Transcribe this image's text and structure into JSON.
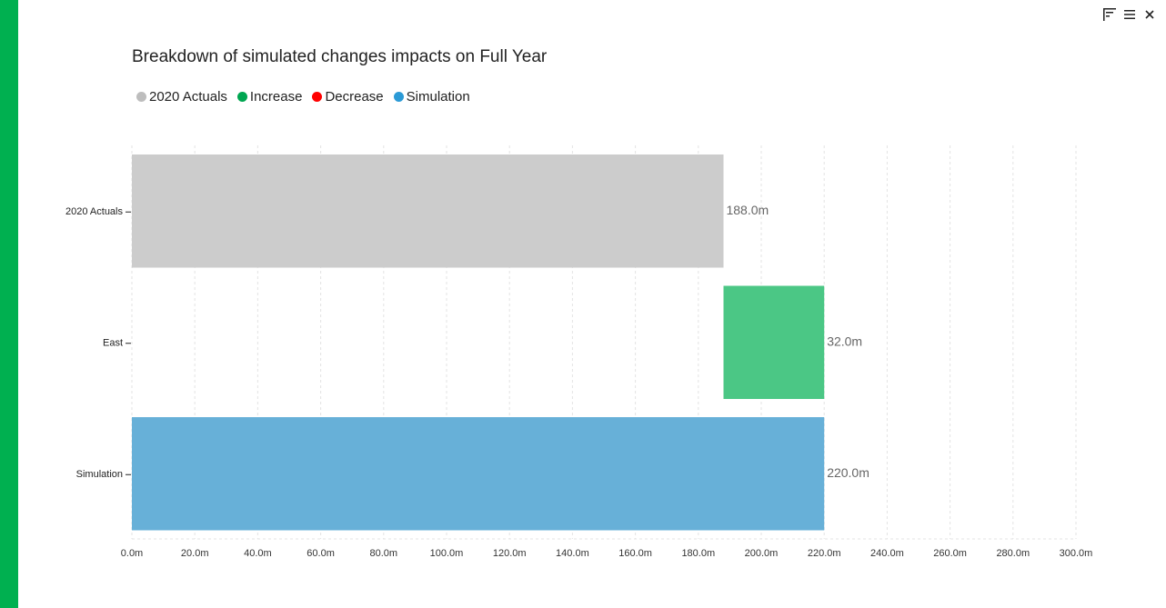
{
  "colors": {
    "accent": "#00b050",
    "actuals": "#cccccc",
    "increase": "#4bc785",
    "decrease": "#ff0000",
    "simulation": "#67b0d8",
    "legend_actuals": "#bdbdbd",
    "legend_increase": "#00a651",
    "legend_decrease": "#ff0000",
    "legend_simulation": "#2b9ad6"
  },
  "toolbar": {
    "focus_icon": "focus-mode-icon",
    "menu_icon": "hamburger-menu-icon",
    "close_icon": "close-icon"
  },
  "chart_data": {
    "type": "bar",
    "orientation": "horizontal",
    "subtype": "waterfall",
    "title": "Breakdown of simulated changes impacts on Full Year",
    "legend": [
      "2020 Actuals",
      "Increase",
      "Decrease",
      "Simulation"
    ],
    "legend_position": "top-left",
    "categories": [
      "2020 Actuals",
      "East",
      "Simulation"
    ],
    "bars": [
      {
        "category": "2020 Actuals",
        "start": 0,
        "end": 188,
        "kind": "actuals",
        "label": "188.0m"
      },
      {
        "category": "East",
        "start": 188,
        "end": 220,
        "kind": "increase",
        "label": "32.0m"
      },
      {
        "category": "Simulation",
        "start": 0,
        "end": 220,
        "kind": "simulation",
        "label": "220.0m"
      }
    ],
    "xlim": [
      0,
      300
    ],
    "xticks": [
      0,
      20,
      40,
      60,
      80,
      100,
      120,
      140,
      160,
      180,
      200,
      220,
      240,
      260,
      280,
      300
    ],
    "xtick_labels": [
      "0.0m",
      "20.0m",
      "40.0m",
      "60.0m",
      "80.0m",
      "100.0m",
      "120.0m",
      "140.0m",
      "160.0m",
      "180.0m",
      "200.0m",
      "220.0m",
      "240.0m",
      "260.0m",
      "280.0m",
      "300.0m"
    ],
    "xlabel": "",
    "ylabel": "",
    "grid": "vertical-dashed"
  }
}
